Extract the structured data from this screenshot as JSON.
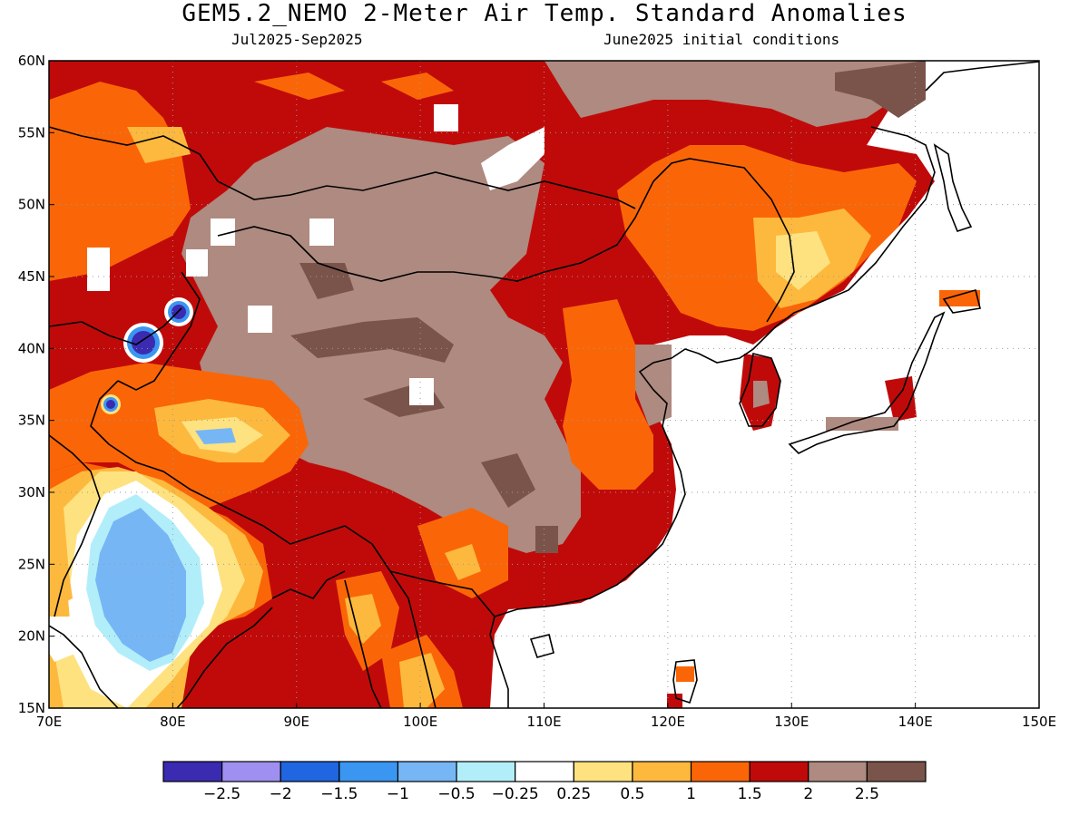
{
  "title": "GEM5.2_NEMO 2-Meter Air Temp. Standard Anomalies",
  "subtitle_left": "Jul2025-Sep2025",
  "subtitle_right": "June2025 initial conditions",
  "map": {
    "lon_range": [
      70,
      150
    ],
    "lat_range": [
      15,
      60
    ],
    "lon_ticks": [
      "70E",
      "80E",
      "90E",
      "100E",
      "110E",
      "120E",
      "130E",
      "140E",
      "150E"
    ],
    "lat_ticks": [
      "15N",
      "20N",
      "25N",
      "30N",
      "35N",
      "40N",
      "45N",
      "50N",
      "55N",
      "60N"
    ],
    "grid": "dotted"
  },
  "legend": {
    "colors": [
      "#3a2bb0",
      "#9f8ff0",
      "#1f66e0",
      "#3b96f2",
      "#76b6f5",
      "#b2eefa",
      "#ffffff",
      "#fee280",
      "#fdb93e",
      "#fa6607",
      "#c00a0a",
      "#ae8a80",
      "#7a544a"
    ],
    "labels": [
      "-2.5",
      "-2",
      "-1.5",
      "-1",
      "-0.5",
      "-0.25",
      "0.25",
      "0.5",
      "1",
      "1.5",
      "2",
      "2.5"
    ]
  }
}
